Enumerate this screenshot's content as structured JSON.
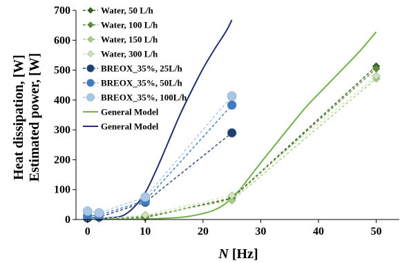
{
  "chart_data": {
    "type": "scatter",
    "xlabel": {
      "italic": "N",
      "rest": " [Hz]"
    },
    "ylabel_lines": [
      "Heat dissipation, [W]",
      "Estimated power, [W]"
    ],
    "xlim": [
      -2,
      54
    ],
    "ylim": [
      0,
      700
    ],
    "xticks": [
      0,
      10,
      20,
      30,
      40,
      50
    ],
    "yticks": [
      0,
      100,
      200,
      300,
      400,
      500,
      600,
      700
    ],
    "grid": false,
    "legend_position": "top-left",
    "series": [
      {
        "name": "Water, 50 L/h",
        "kind": "marker-dashed",
        "marker": "diamond",
        "color": "#3a5f22",
        "size": 5.5,
        "points": [
          [
            0,
            5
          ],
          [
            2,
            3
          ],
          [
            10,
            8
          ],
          [
            25,
            72
          ],
          [
            50,
            513
          ]
        ]
      },
      {
        "name": "Water, 100 L/h",
        "kind": "marker-dashed",
        "marker": "diamond",
        "color": "#5e8a3a",
        "size": 5.5,
        "points": [
          [
            0,
            4
          ],
          [
            2,
            3
          ],
          [
            10,
            6
          ],
          [
            25,
            70
          ],
          [
            50,
            505
          ]
        ]
      },
      {
        "name": "Water, 150 L/h",
        "kind": "marker-dashed",
        "marker": "diamond",
        "color": "#a9cf85",
        "size": 5.5,
        "points": [
          [
            0,
            3
          ],
          [
            2,
            2
          ],
          [
            10,
            12
          ],
          [
            25,
            64
          ],
          [
            50,
            472
          ]
        ]
      },
      {
        "name": "Water, 300 L/h",
        "kind": "marker-dashed",
        "marker": "diamond",
        "color": "#cfe6b8",
        "size": 5.5,
        "points": [
          [
            0,
            2
          ],
          [
            2,
            2
          ],
          [
            10,
            15
          ],
          [
            25,
            80
          ],
          [
            50,
            480
          ]
        ]
      },
      {
        "name": "BREOX_35%, 25L/h",
        "kind": "marker-dashed",
        "marker": "circle",
        "color": "#1f3f6e",
        "size": 6.5,
        "points": [
          [
            0,
            5
          ],
          [
            2,
            8
          ],
          [
            10,
            58
          ],
          [
            25,
            290
          ]
        ]
      },
      {
        "name": "BREOX_35%, 50L/h",
        "kind": "marker-dashed",
        "marker": "circle",
        "color": "#3f7bc0",
        "size": 6.5,
        "points": [
          [
            0,
            12
          ],
          [
            2,
            15
          ],
          [
            10,
            63
          ],
          [
            25,
            383
          ]
        ]
      },
      {
        "name": "BREOX_35%, 100L/h",
        "kind": "marker-dashed",
        "marker": "circle",
        "color": "#a9c6e6",
        "size": 6.5,
        "points": [
          [
            0,
            28
          ],
          [
            2,
            22
          ],
          [
            10,
            75
          ],
          [
            25,
            413
          ]
        ]
      },
      {
        "name": "General Model",
        "kind": "line",
        "color": "#6fb04a",
        "points": [
          [
            0,
            0
          ],
          [
            4,
            0
          ],
          [
            8,
            1
          ],
          [
            12,
            3
          ],
          [
            16,
            7
          ],
          [
            18,
            12
          ],
          [
            20,
            20
          ],
          [
            22,
            32
          ],
          [
            24,
            55
          ],
          [
            26,
            92
          ],
          [
            28,
            140
          ],
          [
            30,
            190
          ],
          [
            32,
            238
          ],
          [
            35,
            310
          ],
          [
            38,
            380
          ],
          [
            41,
            440
          ],
          [
            44,
            500
          ],
          [
            47,
            560
          ],
          [
            50,
            628
          ]
        ]
      },
      {
        "name": "General Model",
        "kind": "line",
        "color": "#1f2d6e",
        "points": [
          [
            0,
            0
          ],
          [
            2,
            2
          ],
          [
            4,
            6
          ],
          [
            6,
            12
          ],
          [
            8,
            40
          ],
          [
            10,
            90
          ],
          [
            12,
            170
          ],
          [
            14,
            260
          ],
          [
            16,
            350
          ],
          [
            18,
            430
          ],
          [
            20,
            505
          ],
          [
            22,
            570
          ],
          [
            24,
            630
          ],
          [
            25,
            668
          ]
        ]
      }
    ]
  }
}
